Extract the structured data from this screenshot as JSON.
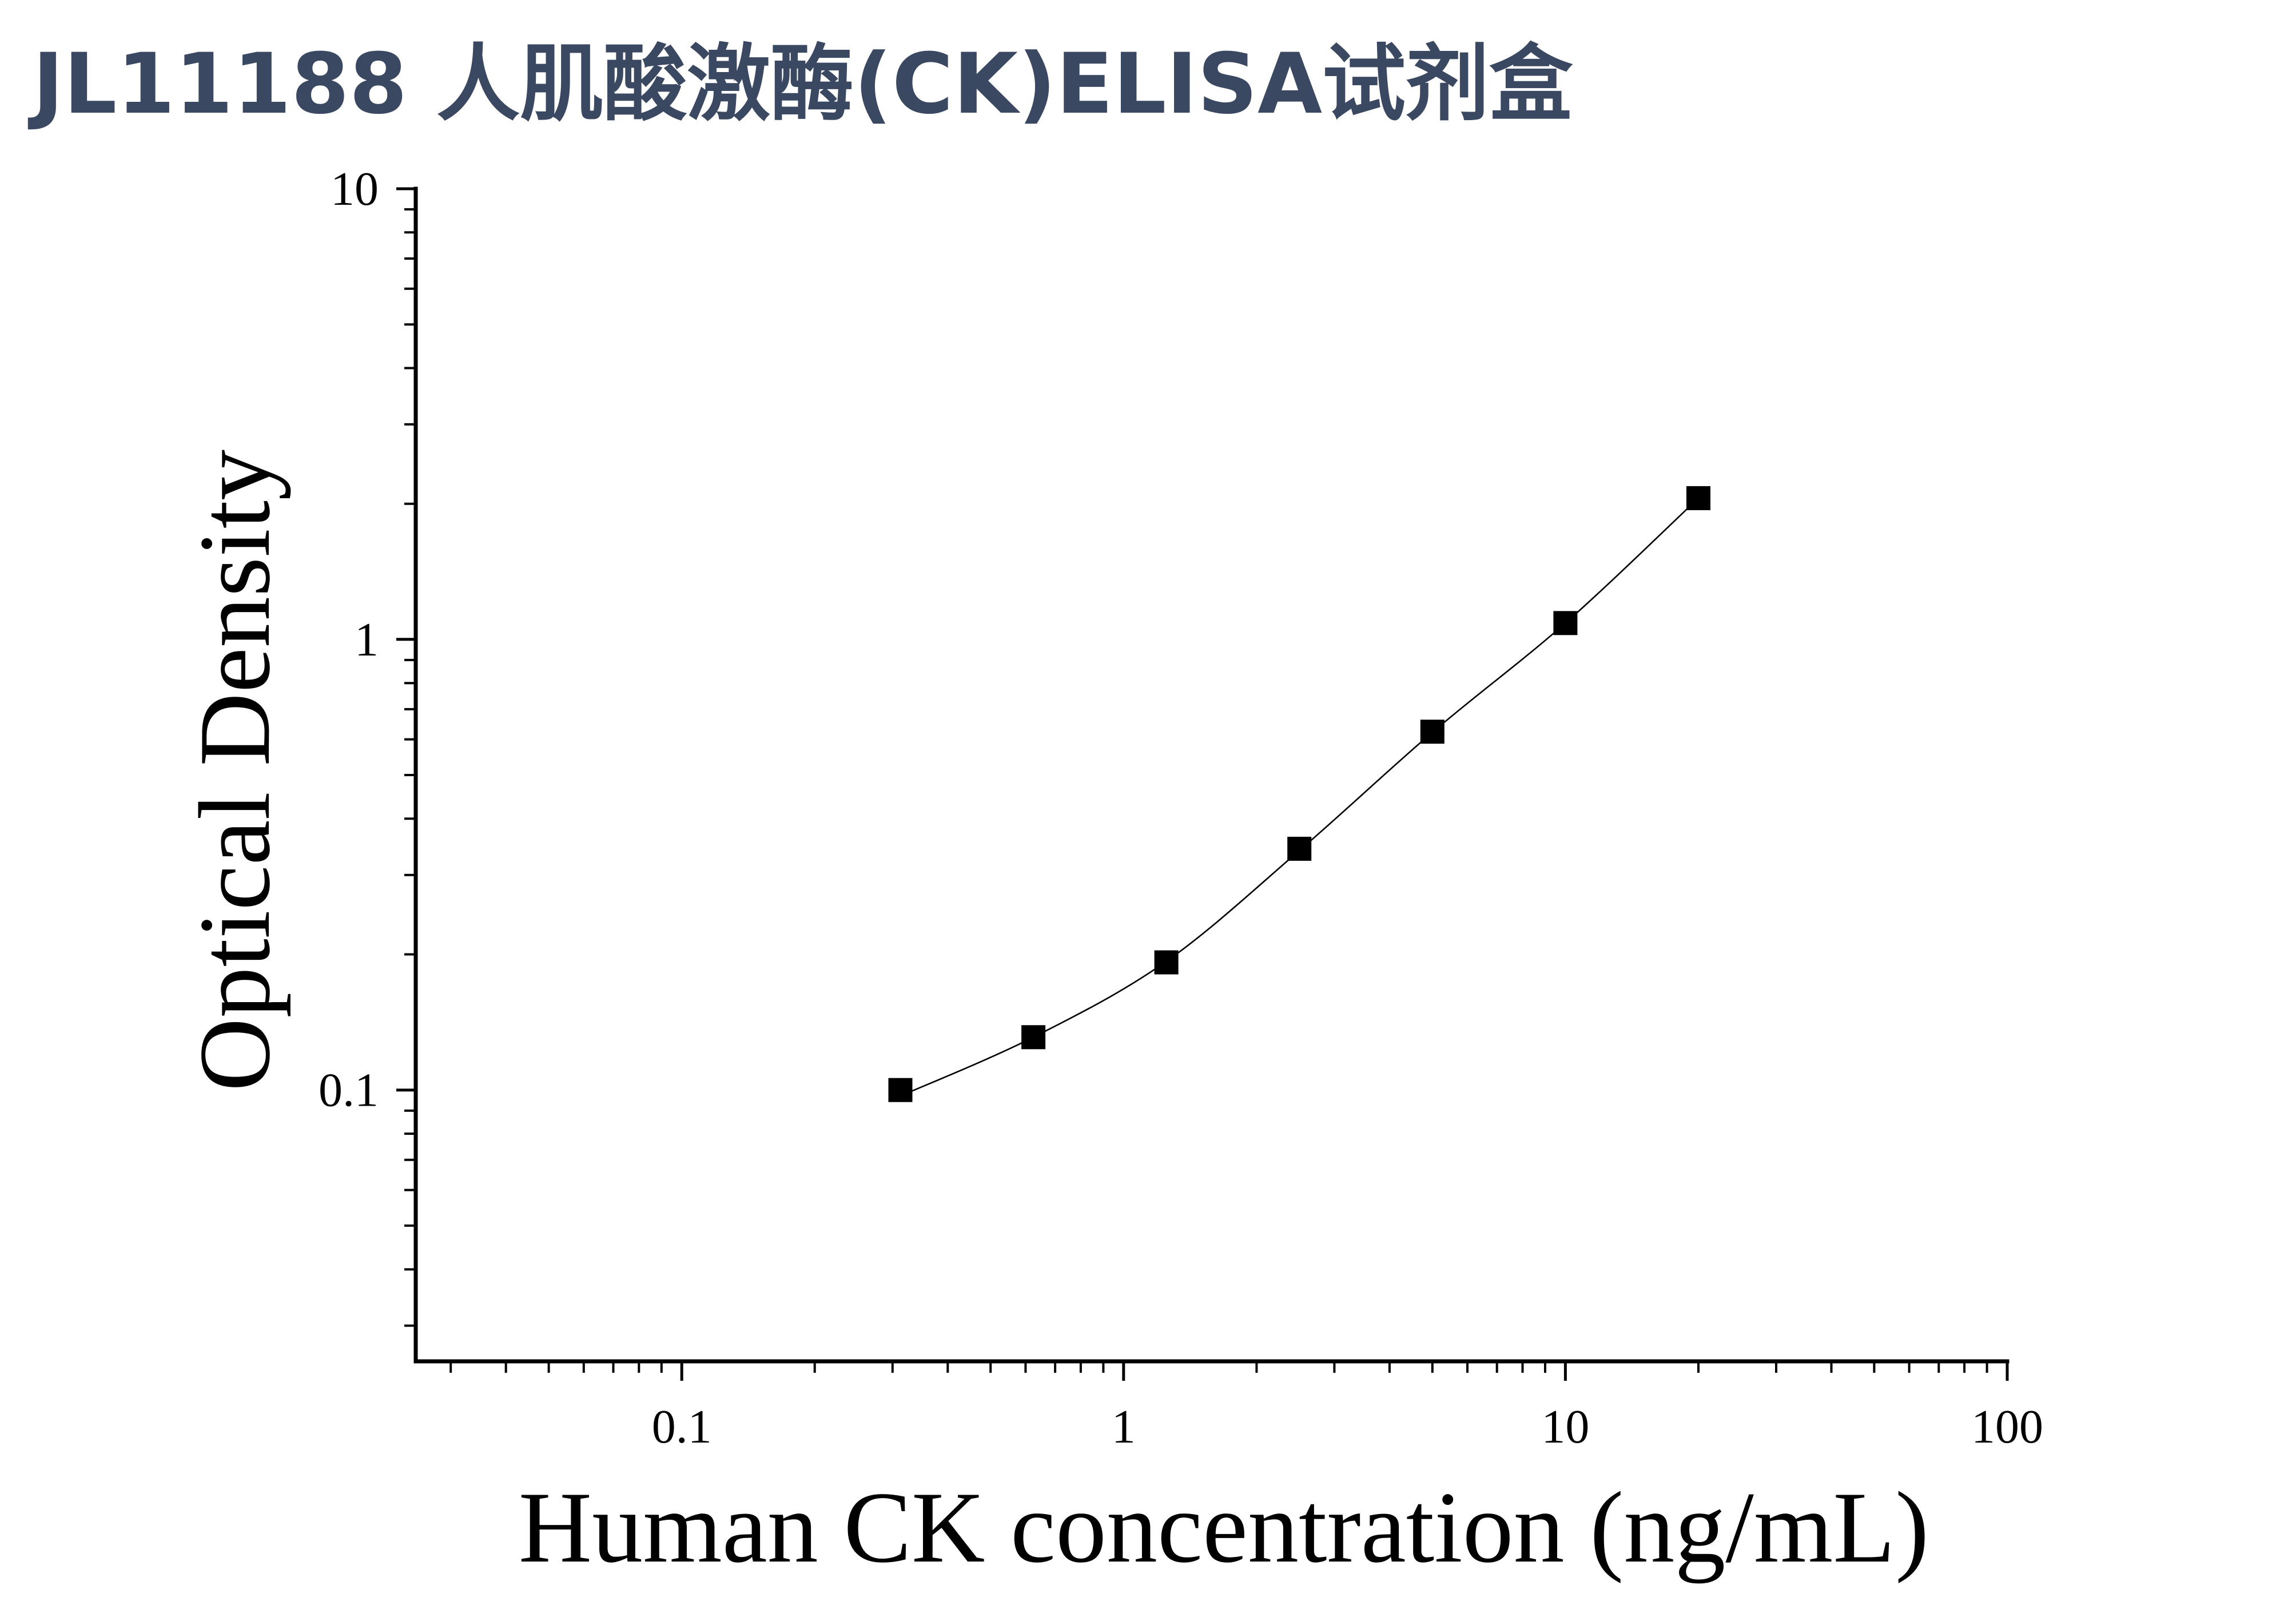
{
  "colors": {
    "title": "#3b4862",
    "ink": "#000000",
    "background": "#ffffff"
  },
  "chart_data": {
    "type": "scatter",
    "title": "JL11188 人肌酸激酶(CK)ELISA试剂盒",
    "xlabel": "Human CK concentration (ng/mL)",
    "ylabel": "Optical Density",
    "xscale": "log",
    "yscale": "log",
    "xlim": [
      0.025,
      100
    ],
    "ylim": [
      0.025,
      10
    ],
    "xticks": [
      0.1,
      1,
      10,
      100
    ],
    "xtick_labels": [
      "0.1",
      "1",
      "10",
      "100"
    ],
    "yticks": [
      0.1,
      1,
      10
    ],
    "ytick_labels": [
      "0.1",
      "1",
      "10"
    ],
    "minor_ticks": true,
    "grid": false,
    "legend": "none",
    "series": [
      {
        "type": "scatter",
        "marker": "square",
        "color": "#000000",
        "x": [
          0.3125,
          0.625,
          1.25,
          2.5,
          5,
          10,
          20
        ],
        "y": [
          0.1,
          0.131,
          0.192,
          0.343,
          0.624,
          1.087,
          2.058
        ]
      },
      {
        "type": "line",
        "smooth": true,
        "color": "#000000",
        "x": [
          0.3125,
          0.625,
          1.25,
          2.5,
          5,
          10,
          20
        ],
        "y": [
          0.097,
          0.131,
          0.193,
          0.34,
          0.622,
          1.087,
          2.058
        ]
      }
    ]
  }
}
